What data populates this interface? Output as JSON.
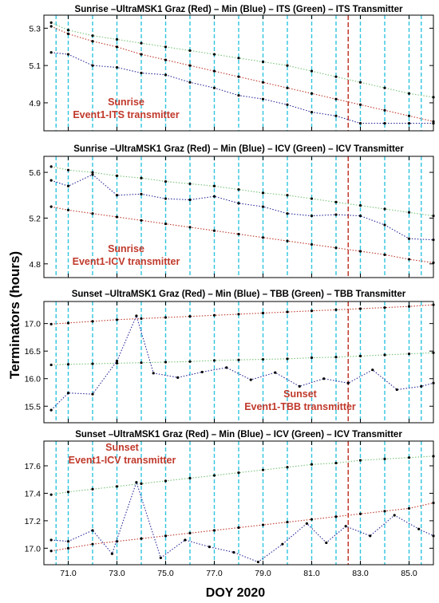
{
  "figure": {
    "ylabel": "Terminators (hours)",
    "xlabel": "DOY 2020"
  },
  "colors": {
    "ultra": "#c0392b",
    "min": "#2b2b9a",
    "transmitter": "#7ac47a",
    "vertical_grid": "#2fc4df",
    "event_line": "#c0392b",
    "annotation": "#c0392b"
  },
  "chart_data": [
    {
      "type": "line",
      "title": "Sunrise –UltraMSK1 Graz (Red) – Min (Blue) – ITS (Green) – ITS Transmitter",
      "xlim": [
        70.0,
        86.0
      ],
      "ylim": [
        4.75,
        5.37
      ],
      "yticks": [
        4.9,
        5.1,
        5.3
      ],
      "ytick_labels": [
        "4.9",
        "5.1",
        "5.3"
      ],
      "xticks": [
        71,
        73,
        75,
        77,
        79,
        81,
        83,
        85
      ],
      "xtick_labels": [],
      "grid_x": [
        70.5,
        71.0,
        72.0,
        73.0,
        74.0,
        75.0,
        76.0,
        77.0,
        78.0,
        79.0,
        80.0,
        81.0,
        82.0,
        83.0,
        84.0,
        85.0,
        85.5
      ],
      "event_x": 82.5,
      "annotation": [
        "Sunrise",
        "Event1-ITS transmitter"
      ],
      "annotation_pos": "bottom-left",
      "series": [
        {
          "role": "transmitter",
          "x": [
            70.3,
            71.0,
            72.0,
            73.0,
            74.0,
            75.0,
            76.0,
            77.0,
            78.0,
            79.0,
            80.0,
            81.0,
            82.0,
            83.0,
            84.0,
            85.0,
            86.0
          ],
          "values": [
            5.33,
            5.29,
            5.26,
            5.24,
            5.22,
            5.2,
            5.18,
            5.16,
            5.14,
            5.12,
            5.1,
            5.07,
            5.04,
            5.01,
            4.98,
            4.95,
            4.93
          ]
        },
        {
          "role": "ultra",
          "x": [
            70.3,
            71.0,
            72.0,
            73.0,
            74.0,
            75.0,
            76.0,
            77.0,
            78.0,
            79.0,
            80.0,
            81.0,
            82.0,
            83.0,
            84.0,
            85.0,
            86.0
          ],
          "values": [
            5.31,
            5.27,
            5.23,
            5.2,
            5.16,
            5.13,
            5.1,
            5.07,
            5.04,
            5.01,
            4.98,
            4.95,
            4.92,
            4.89,
            4.86,
            4.83,
            4.8
          ]
        },
        {
          "role": "min",
          "x": [
            70.3,
            71.0,
            72.0,
            73.0,
            74.0,
            75.0,
            76.0,
            77.0,
            78.0,
            79.0,
            80.0,
            81.0,
            82.0,
            83.0,
            84.0,
            85.0,
            86.0
          ],
          "values": [
            5.17,
            5.16,
            5.1,
            5.09,
            5.06,
            5.05,
            5.01,
            4.98,
            4.94,
            4.92,
            4.89,
            4.85,
            4.83,
            4.79,
            4.79,
            4.79,
            4.79
          ]
        }
      ]
    },
    {
      "type": "line",
      "title": "Sunrise –UltraMSK1 Graz (Red) – Min (Blue) – ICV (Green) – ICV Transmitter",
      "xlim": [
        70.0,
        86.0
      ],
      "ylim": [
        4.68,
        5.74
      ],
      "yticks": [
        4.8,
        5.2,
        5.6
      ],
      "ytick_labels": [
        "4.8",
        "5.2",
        "5.6"
      ],
      "xticks": [
        71,
        73,
        75,
        77,
        79,
        81,
        83,
        85
      ],
      "xtick_labels": [],
      "grid_x": [
        70.5,
        71.0,
        72.0,
        73.0,
        74.0,
        75.0,
        76.0,
        77.0,
        78.0,
        79.0,
        80.0,
        81.0,
        82.0,
        83.0,
        84.0,
        85.0,
        85.5
      ],
      "event_x": 82.5,
      "annotation": [
        "Sunrise",
        "Event1-ICV transmitter"
      ],
      "annotation_pos": "bottom-left",
      "series": [
        {
          "role": "transmitter",
          "x": [
            70.3,
            71.0,
            72.0,
            73.0,
            74.0,
            75.0,
            76.0,
            77.0,
            78.0,
            79.0,
            80.0,
            81.0,
            82.0,
            83.0,
            84.0,
            85.0,
            86.0
          ],
          "values": [
            5.65,
            5.62,
            5.6,
            5.57,
            5.55,
            5.52,
            5.5,
            5.48,
            5.45,
            5.42,
            5.4,
            5.37,
            5.34,
            5.31,
            5.28,
            5.25,
            5.22
          ]
        },
        {
          "role": "min",
          "x": [
            70.3,
            71.0,
            72.0,
            73.0,
            74.0,
            75.0,
            76.0,
            77.0,
            78.0,
            79.0,
            80.0,
            81.0,
            82.0,
            83.0,
            84.0,
            85.0,
            86.0
          ],
          "values": [
            5.53,
            5.48,
            5.58,
            5.4,
            5.41,
            5.37,
            5.36,
            5.39,
            5.33,
            5.3,
            5.24,
            5.22,
            5.23,
            5.22,
            5.14,
            5.02,
            5.01
          ]
        },
        {
          "role": "ultra",
          "x": [
            70.3,
            71.0,
            72.0,
            73.0,
            74.0,
            75.0,
            76.0,
            77.0,
            78.0,
            79.0,
            80.0,
            81.0,
            82.0,
            83.0,
            84.0,
            85.0,
            86.0
          ],
          "values": [
            5.3,
            5.27,
            5.24,
            5.21,
            5.18,
            5.15,
            5.12,
            5.09,
            5.06,
            5.03,
            5.0,
            4.97,
            4.94,
            4.91,
            4.88,
            4.84,
            4.81
          ]
        }
      ]
    },
    {
      "type": "line",
      "title": "Sunset –UltraMSK1 Graz (Red) – Min (Blue) – TBB (Green) – TBB Transmitter",
      "xlim": [
        70.0,
        86.0
      ],
      "ylim": [
        15.2,
        17.4
      ],
      "yticks": [
        15.5,
        16.0,
        16.5,
        17.0
      ],
      "ytick_labels": [
        "15.5",
        "16.0",
        "16.5",
        "17.0"
      ],
      "xticks": [
        71,
        73,
        75,
        77,
        79,
        81,
        83,
        85
      ],
      "xtick_labels": [],
      "grid_x": [
        70.5,
        71.0,
        72.0,
        73.0,
        74.0,
        75.0,
        76.0,
        77.0,
        78.0,
        79.0,
        80.0,
        81.0,
        82.0,
        83.0,
        84.0,
        85.0,
        85.5
      ],
      "event_x": 82.5,
      "annotation": [
        "Sunset",
        "Event1-TBB transmitter"
      ],
      "annotation_pos": "bottom-right",
      "series": [
        {
          "role": "ultra",
          "x": [
            70.3,
            71.0,
            72.0,
            73.0,
            74.0,
            75.0,
            76.0,
            77.0,
            78.0,
            79.0,
            80.0,
            81.0,
            82.0,
            83.0,
            84.0,
            85.0,
            86.0
          ],
          "values": [
            16.99,
            17.01,
            17.04,
            17.07,
            17.09,
            17.11,
            17.13,
            17.15,
            17.17,
            17.19,
            17.21,
            17.23,
            17.25,
            17.27,
            17.29,
            17.31,
            17.34
          ]
        },
        {
          "role": "transmitter",
          "x": [
            70.3,
            71.0,
            72.0,
            73.0,
            74.0,
            75.0,
            76.0,
            77.0,
            78.0,
            79.0,
            80.0,
            81.0,
            82.0,
            83.0,
            84.0,
            85.0,
            86.0
          ],
          "values": [
            16.25,
            16.26,
            16.27,
            16.28,
            16.29,
            16.3,
            16.31,
            16.33,
            16.34,
            16.35,
            16.36,
            16.38,
            16.39,
            16.41,
            16.43,
            16.45,
            16.47
          ]
        },
        {
          "role": "min",
          "x": [
            70.3,
            71.0,
            72.0,
            73.0,
            73.8,
            74.5,
            75.5,
            76.5,
            77.5,
            78.5,
            79.5,
            80.5,
            81.5,
            82.5,
            83.5,
            84.5,
            85.5,
            86.0
          ],
          "values": [
            15.43,
            15.74,
            15.72,
            16.32,
            17.14,
            16.1,
            16.02,
            16.12,
            16.2,
            15.98,
            16.11,
            15.86,
            16.0,
            15.92,
            16.16,
            15.8,
            15.86,
            15.92
          ]
        }
      ]
    },
    {
      "type": "line",
      "title": "Sunset –UltraMSK1 Graz (Red) – Min (Blue) – ICV (Green) – ICV Transmitter",
      "xlim": [
        70.0,
        86.0
      ],
      "ylim": [
        16.88,
        17.78
      ],
      "yticks": [
        17.0,
        17.2,
        17.4,
        17.6
      ],
      "ytick_labels": [
        "17.0",
        "17.2",
        "17.4",
        "17.6"
      ],
      "xticks": [
        71,
        73,
        75,
        77,
        79,
        81,
        83,
        85
      ],
      "xtick_labels": [
        "71.0",
        "73.0",
        "75.0",
        "77.0",
        "79.0",
        "81.0",
        "83.0",
        "85.0"
      ],
      "grid_x": [
        70.5,
        71.0,
        72.0,
        73.0,
        74.0,
        75.0,
        76.0,
        77.0,
        78.0,
        79.0,
        80.0,
        81.0,
        82.0,
        83.0,
        84.0,
        85.0,
        85.5
      ],
      "event_x": 82.5,
      "annotation": [
        "Sunset",
        "Event1-ICV transmitter"
      ],
      "annotation_pos": "top-left",
      "series": [
        {
          "role": "transmitter",
          "x": [
            70.3,
            71.0,
            72.0,
            73.0,
            74.0,
            75.0,
            76.0,
            77.0,
            78.0,
            79.0,
            80.0,
            81.0,
            82.0,
            83.0,
            84.0,
            85.0,
            86.0
          ],
          "values": [
            17.39,
            17.41,
            17.43,
            17.45,
            17.47,
            17.49,
            17.51,
            17.53,
            17.55,
            17.57,
            17.59,
            17.61,
            17.62,
            17.64,
            17.65,
            17.66,
            17.67
          ]
        },
        {
          "role": "ultra",
          "x": [
            70.3,
            71.0,
            72.0,
            73.0,
            74.0,
            75.0,
            76.0,
            77.0,
            78.0,
            79.0,
            80.0,
            81.0,
            82.0,
            83.0,
            84.0,
            85.0,
            86.0
          ],
          "values": [
            16.98,
            17.0,
            17.03,
            17.05,
            17.07,
            17.09,
            17.11,
            17.13,
            17.15,
            17.17,
            17.19,
            17.21,
            17.23,
            17.25,
            17.27,
            17.29,
            17.33
          ]
        },
        {
          "role": "min",
          "x": [
            70.3,
            71.0,
            72.0,
            72.8,
            73.8,
            74.8,
            75.8,
            76.8,
            77.8,
            78.8,
            79.8,
            80.8,
            81.6,
            82.4,
            83.4,
            84.4,
            85.4,
            86.0
          ],
          "values": [
            17.06,
            17.05,
            17.13,
            16.96,
            17.48,
            16.93,
            17.06,
            17.01,
            16.97,
            16.9,
            17.03,
            17.18,
            17.04,
            17.16,
            17.09,
            17.24,
            17.14,
            17.09
          ]
        }
      ]
    }
  ]
}
